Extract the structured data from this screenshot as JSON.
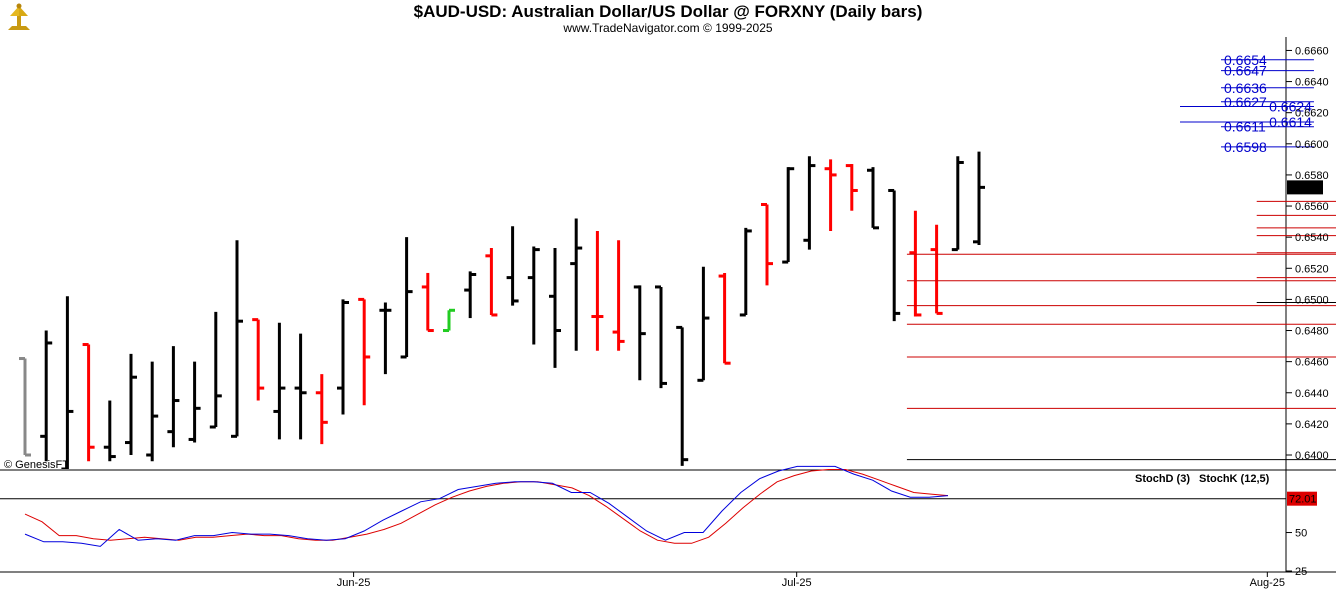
{
  "header": {
    "title": "$AUD-USD:  Australian Dollar/US Dollar @ FORXNY  (Daily bars)",
    "subtitle": "www.TradeNavigator.com © 1999-2025",
    "watermark": "© GenesisFT"
  },
  "colors": {
    "bar_black": "#000000",
    "bar_red": "#ff0000",
    "bar_green": "#22cc22",
    "bar_gray": "#888888",
    "blue_level": "#0000cc",
    "red_level": "#cc0000",
    "stoch_d": "#dd0000",
    "stoch_k": "#0000dd"
  },
  "chart_data": [
    {
      "type": "ohlc",
      "title": "$AUD-USD:  Australian Dollar/US Dollar @ FORXNY  (Daily bars)",
      "ylim": [
        0.6391,
        0.6668
      ],
      "y_ticks": [
        "0.6660",
        "0.6640",
        "0.6620",
        "0.6600",
        "0.6580",
        "0.6560",
        "0.6540",
        "0.6520",
        "0.6500",
        "0.6480",
        "0.6460",
        "0.6440",
        "0.6420",
        "0.6400"
      ],
      "x_ticks": [
        {
          "label": "Jun-25",
          "bar": 15.5
        },
        {
          "label": "Jul-25",
          "bar": 36.4
        },
        {
          "label": "Aug-25",
          "bar": 58.6
        }
      ],
      "last_price": "0.6572",
      "bars": [
        {
          "o": 0.6462,
          "h": 0.6462,
          "l": 0.64,
          "c": 0.64,
          "col": "gray"
        },
        {
          "o": 0.6412,
          "h": 0.648,
          "l": 0.6396,
          "c": 0.6472,
          "col": "black"
        },
        {
          "o": 0.6391,
          "h": 0.6502,
          "l": 0.6391,
          "c": 0.6428,
          "col": "black"
        },
        {
          "o": 0.6471,
          "h": 0.6471,
          "l": 0.6396,
          "c": 0.6405,
          "col": "red"
        },
        {
          "o": 0.6405,
          "h": 0.6435,
          "l": 0.6396,
          "c": 0.6399,
          "col": "black"
        },
        {
          "o": 0.6408,
          "h": 0.6465,
          "l": 0.64,
          "c": 0.645,
          "col": "black"
        },
        {
          "o": 0.64,
          "h": 0.646,
          "l": 0.6396,
          "c": 0.6425,
          "col": "black"
        },
        {
          "o": 0.6415,
          "h": 0.647,
          "l": 0.6405,
          "c": 0.6435,
          "col": "black"
        },
        {
          "o": 0.641,
          "h": 0.646,
          "l": 0.6408,
          "c": 0.643,
          "col": "black"
        },
        {
          "o": 0.6418,
          "h": 0.6492,
          "l": 0.6418,
          "c": 0.6438,
          "col": "black"
        },
        {
          "o": 0.6412,
          "h": 0.6538,
          "l": 0.6412,
          "c": 0.6486,
          "col": "black"
        },
        {
          "o": 0.6487,
          "h": 0.6487,
          "l": 0.6435,
          "c": 0.6443,
          "col": "red"
        },
        {
          "o": 0.6428,
          "h": 0.6485,
          "l": 0.641,
          "c": 0.6443,
          "col": "black"
        },
        {
          "o": 0.6443,
          "h": 0.6478,
          "l": 0.641,
          "c": 0.644,
          "col": "black"
        },
        {
          "o": 0.644,
          "h": 0.6452,
          "l": 0.6407,
          "c": 0.6421,
          "col": "red"
        },
        {
          "o": 0.6443,
          "h": 0.65,
          "l": 0.6426,
          "c": 0.6498,
          "col": "black"
        },
        {
          "o": 0.65,
          "h": 0.65,
          "l": 0.6432,
          "c": 0.6463,
          "col": "red"
        },
        {
          "o": 0.6493,
          "h": 0.6498,
          "l": 0.6452,
          "c": 0.6493,
          "col": "black"
        },
        {
          "o": 0.6463,
          "h": 0.654,
          "l": 0.6463,
          "c": 0.6505,
          "col": "black"
        },
        {
          "o": 0.6508,
          "h": 0.6517,
          "l": 0.648,
          "c": 0.648,
          "col": "red"
        },
        {
          "o": 0.648,
          "h": 0.6493,
          "l": 0.648,
          "c": 0.6493,
          "col": "green"
        },
        {
          "o": 0.6506,
          "h": 0.6518,
          "l": 0.6488,
          "c": 0.6516,
          "col": "black"
        },
        {
          "o": 0.6528,
          "h": 0.6533,
          "l": 0.649,
          "c": 0.649,
          "col": "red"
        },
        {
          "o": 0.6514,
          "h": 0.6547,
          "l": 0.6496,
          "c": 0.6499,
          "col": "black"
        },
        {
          "o": 0.6514,
          "h": 0.6534,
          "l": 0.6471,
          "c": 0.6532,
          "col": "black"
        },
        {
          "o": 0.6502,
          "h": 0.6533,
          "l": 0.6456,
          "c": 0.648,
          "col": "black"
        },
        {
          "o": 0.6523,
          "h": 0.6552,
          "l": 0.6467,
          "c": 0.6533,
          "col": "black"
        },
        {
          "o": 0.6489,
          "h": 0.6544,
          "l": 0.6467,
          "c": 0.6489,
          "col": "red"
        },
        {
          "o": 0.6479,
          "h": 0.6538,
          "l": 0.6467,
          "c": 0.6473,
          "col": "red"
        },
        {
          "o": 0.6508,
          "h": 0.6509,
          "l": 0.6448,
          "c": 0.6478,
          "col": "black"
        },
        {
          "o": 0.6508,
          "h": 0.6508,
          "l": 0.6443,
          "c": 0.6446,
          "col": "black"
        },
        {
          "o": 0.6482,
          "h": 0.6482,
          "l": 0.6393,
          "c": 0.6397,
          "col": "black"
        },
        {
          "o": 0.6448,
          "h": 0.6521,
          "l": 0.6448,
          "c": 0.6488,
          "col": "black"
        },
        {
          "o": 0.6515,
          "h": 0.6517,
          "l": 0.6459,
          "c": 0.6459,
          "col": "red"
        },
        {
          "o": 0.649,
          "h": 0.6546,
          "l": 0.649,
          "c": 0.6544,
          "col": "black"
        },
        {
          "o": 0.6561,
          "h": 0.6561,
          "l": 0.6509,
          "c": 0.6523,
          "col": "red"
        },
        {
          "o": 0.6524,
          "h": 0.6585,
          "l": 0.6524,
          "c": 0.6584,
          "col": "black"
        },
        {
          "o": 0.6538,
          "h": 0.6592,
          "l": 0.6532,
          "c": 0.6586,
          "col": "black"
        },
        {
          "o": 0.6584,
          "h": 0.659,
          "l": 0.6544,
          "c": 0.658,
          "col": "red"
        },
        {
          "o": 0.6586,
          "h": 0.6587,
          "l": 0.6557,
          "c": 0.657,
          "col": "red"
        },
        {
          "o": 0.6583,
          "h": 0.6585,
          "l": 0.6546,
          "c": 0.6546,
          "col": "black"
        },
        {
          "o": 0.657,
          "h": 0.657,
          "l": 0.6486,
          "c": 0.6491,
          "col": "black"
        },
        {
          "o": 0.653,
          "h": 0.6557,
          "l": 0.6489,
          "c": 0.649,
          "col": "red"
        },
        {
          "o": 0.6532,
          "h": 0.6548,
          "l": 0.6491,
          "c": 0.6491,
          "col": "red"
        },
        {
          "o": 0.6532,
          "h": 0.6592,
          "l": 0.6532,
          "c": 0.6588,
          "col": "black"
        },
        {
          "o": 0.6537,
          "h": 0.6595,
          "l": 0.6535,
          "c": 0.6572,
          "col": "black"
        }
      ],
      "levels": [
        {
          "label": "0.6654",
          "value": 0.6654,
          "color": "blue",
          "x_from": 60.8,
          "x_to": 65.4,
          "label_side": "right"
        },
        {
          "label": "0.6647",
          "value": 0.6647,
          "color": "blue",
          "x_from": 60.8,
          "x_to": 65.4,
          "label_side": "right"
        },
        {
          "label": "0.6636",
          "value": 0.6636,
          "color": "blue",
          "x_from": 60.8,
          "x_to": 65.4,
          "label_side": "right"
        },
        {
          "label": "0.6627",
          "value": 0.6627,
          "color": "blue",
          "x_from": 60.8,
          "x_to": 65.4,
          "label_side": "right"
        },
        {
          "label": "0.6624",
          "value": 0.6624,
          "color": "blue",
          "x_from": 60.8,
          "x_to": 79.0,
          "label_side": "left"
        },
        {
          "label": "0.6614",
          "value": 0.6614,
          "color": "blue",
          "x_from": 60.8,
          "x_to": 65.4,
          "label_side": "left"
        },
        {
          "label": "0.6611",
          "value": 0.6611,
          "color": "blue",
          "x_from": 60.8,
          "x_to": 65.4,
          "label_side": "right"
        },
        {
          "label": "0.6598",
          "value": 0.6598,
          "color": "blue",
          "x_from": 60.8,
          "x_to": 65.4,
          "label_side": "right"
        },
        {
          "label": "0.6563",
          "value": 0.6563,
          "color": "red",
          "x_from": 58.1,
          "x_to": 63.2,
          "label_side": "right"
        },
        {
          "label": "0.6554",
          "value": 0.6554,
          "color": "red",
          "x_from": 58.1,
          "x_to": 63.2,
          "label_side": "right"
        },
        {
          "label": "0.6546",
          "value": 0.6546,
          "color": "red",
          "x_from": 58.1,
          "x_to": 63.2,
          "label_side": "right"
        },
        {
          "label": "0.6541",
          "value": 0.6541,
          "color": "red",
          "x_from": 58.1,
          "x_to": 63.2,
          "label_side": "right"
        },
        {
          "label": "0.6530",
          "value": 0.653,
          "color": "red",
          "x_from": 58.1,
          "x_to": 63.2,
          "label_side": "right"
        },
        {
          "label": "0.6514",
          "value": 0.6514,
          "color": "red",
          "x_from": 58.1,
          "x_to": 63.2,
          "label_side": "right"
        },
        {
          "label": "0.6498",
          "value": 0.6498,
          "color": "black",
          "x_from": 58.1,
          "x_to": 63.2,
          "label_side": "right"
        },
        {
          "label": "0.6529",
          "value": 0.6529,
          "color": "red",
          "x_from": 41.6,
          "x_to": 67.9,
          "label_side": "right"
        },
        {
          "label": "0.6512",
          "value": 0.6512,
          "color": "red",
          "x_from": 41.6,
          "x_to": 67.9,
          "label_side": "right"
        },
        {
          "label": "0.6496",
          "value": 0.6496,
          "color": "red",
          "x_from": 41.6,
          "x_to": 67.9,
          "label_side": "right"
        },
        {
          "label": "0.6484",
          "value": 0.6484,
          "color": "red",
          "x_from": 41.6,
          "x_to": 67.9,
          "label_side": "right"
        },
        {
          "label": "0.6463",
          "value": 0.6463,
          "color": "red",
          "x_from": 41.6,
          "x_to": 67.9,
          "label_side": "right"
        },
        {
          "label": "0.6430",
          "value": 0.643,
          "color": "red",
          "x_from": 41.6,
          "x_to": 67.9,
          "label_side": "right"
        },
        {
          "label": "0.6397",
          "value": 0.6397,
          "color": "black",
          "x_from": 41.6,
          "x_to": 67.9,
          "label_side": "right"
        }
      ]
    },
    {
      "type": "line",
      "ylim": [
        25,
        90
      ],
      "y_ticks": [
        "50",
        "25"
      ],
      "reference_line": 72,
      "last_value": "72.01",
      "series": [
        {
          "name": "StochD (3)",
          "color": "red",
          "values": [
            62,
            57,
            48,
            48,
            46,
            45,
            46,
            47,
            46,
            45,
            47,
            47,
            48,
            49,
            48,
            48,
            46,
            45,
            45,
            47,
            49,
            52,
            56,
            62,
            68,
            73,
            77,
            80,
            82,
            83,
            83,
            81,
            79,
            74,
            67,
            59,
            51,
            45,
            43,
            43,
            47,
            56,
            66,
            75,
            83,
            87,
            90,
            91,
            91,
            88,
            84,
            80,
            76,
            75,
            74
          ]
        },
        {
          "name": "StochK (12,5)",
          "color": "blue",
          "values": [
            49,
            44,
            44,
            43,
            41,
            52,
            45,
            46,
            45,
            48,
            48,
            50,
            49,
            49,
            48,
            46,
            45,
            46,
            51,
            58,
            64,
            70,
            72,
            78,
            80,
            82,
            83,
            83,
            82,
            76,
            76,
            69,
            60,
            51,
            45,
            50,
            50,
            64,
            76,
            85,
            90,
            93,
            93,
            93,
            88,
            84,
            77,
            73,
            73,
            74
          ]
        }
      ],
      "legend": [
        "StochD (3)",
        "StochK (12,5)"
      ]
    }
  ]
}
